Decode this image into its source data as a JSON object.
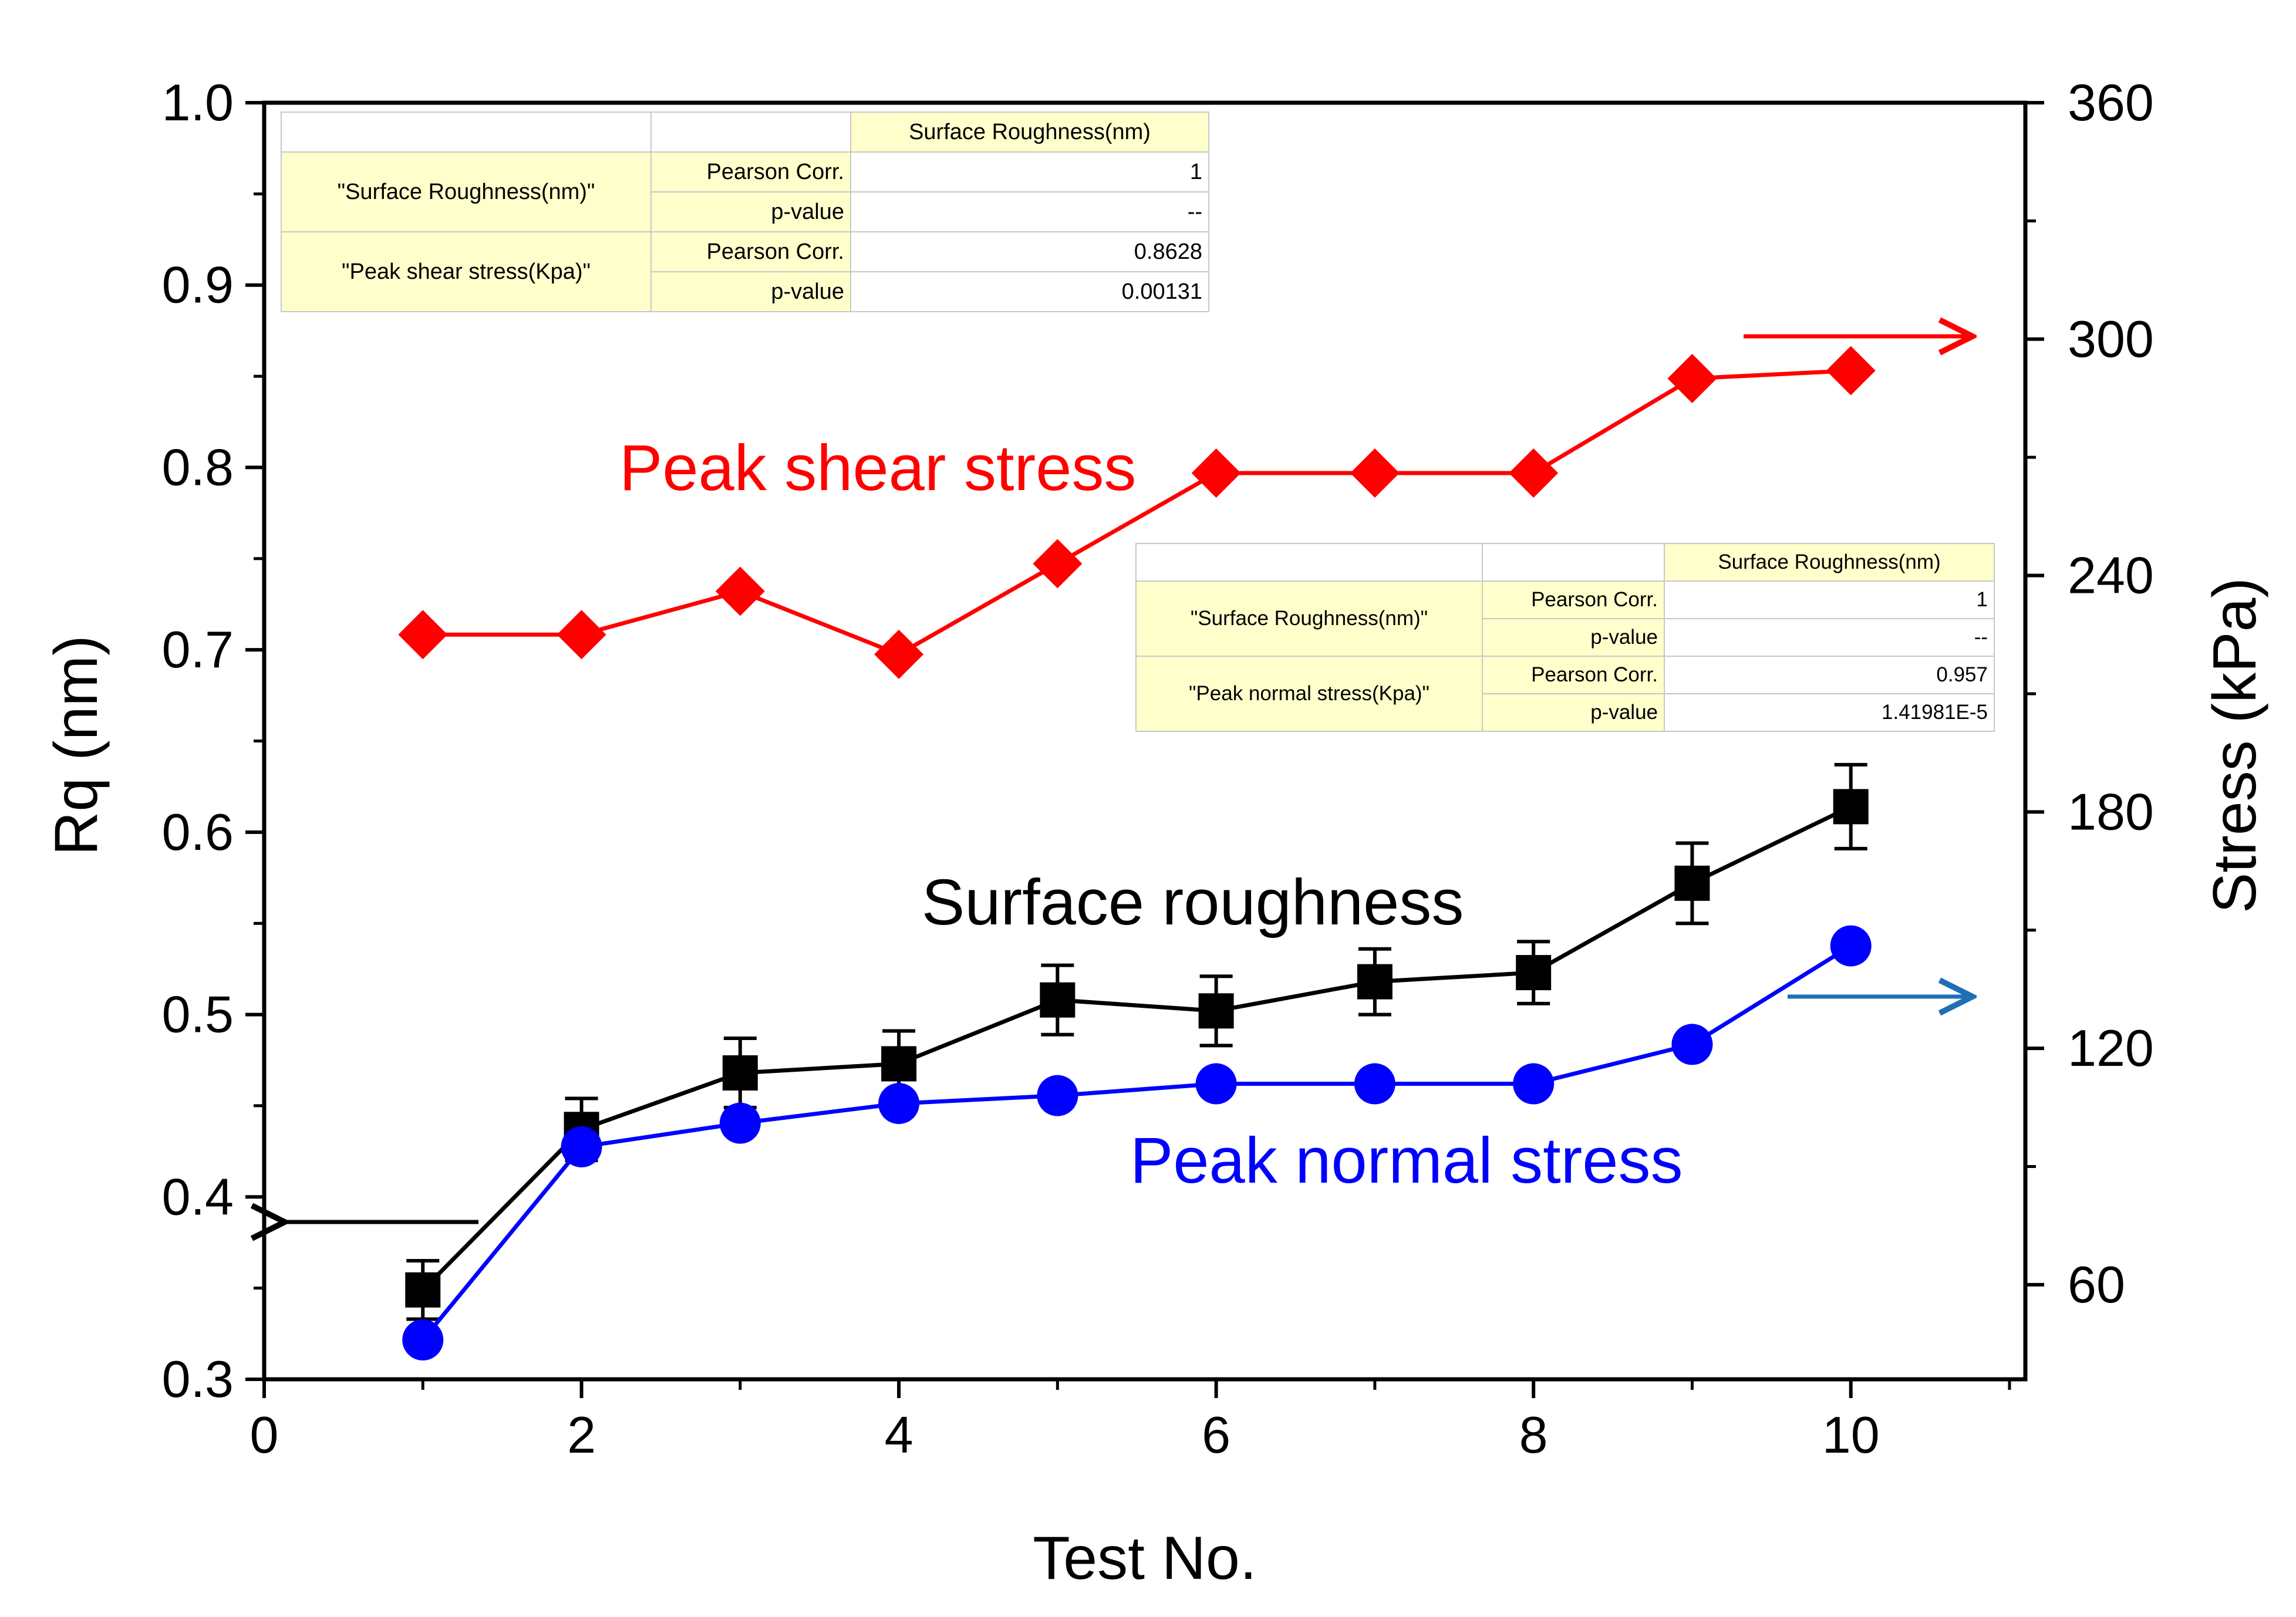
{
  "chart_data": {
    "type": "line",
    "x": [
      1,
      2,
      3,
      4,
      5,
      6,
      7,
      8,
      9,
      10
    ],
    "xlabel": "Test No.",
    "xlim": [
      0,
      11.1
    ],
    "xticks": [
      "0",
      "2",
      "4",
      "6",
      "8",
      "10"
    ],
    "ylabel_left": "Rq (nm)",
    "ylim_left": [
      0.3,
      1.0
    ],
    "yticks_left": [
      "0.3",
      "0.4",
      "0.5",
      "0.6",
      "0.7",
      "0.8",
      "0.9",
      "1.0"
    ],
    "ylabel_right": "Stress (kPa)",
    "ylim_right": [
      36,
      360
    ],
    "yticks_right": [
      "60",
      "120",
      "180",
      "240",
      "300",
      "360"
    ],
    "grid": false,
    "series": [
      {
        "name": "Surface roughness",
        "axis": "left",
        "color": "#000000",
        "marker": "square",
        "values": [
          0.349,
          0.437,
          0.468,
          0.473,
          0.508,
          0.502,
          0.518,
          0.523,
          0.572,
          0.614
        ],
        "errors": [
          0.016,
          0.017,
          0.019,
          0.018,
          0.019,
          0.019,
          0.018,
          0.017,
          0.022,
          0.023
        ]
      },
      {
        "name": "Peak shear stress",
        "axis": "right",
        "color": "#ff0000",
        "marker": "diamond",
        "values": [
          225,
          225,
          236,
          220,
          243,
          266,
          266,
          266,
          290,
          292
        ]
      },
      {
        "name": "Peak normal stress",
        "axis": "right",
        "color": "#0000ff",
        "marker": "circle",
        "values": [
          46,
          95,
          101,
          106,
          108,
          111,
          111,
          111,
          121,
          146
        ]
      }
    ],
    "annotations": [
      "Peak shear stress",
      "Surface roughness",
      "Peak normal stress"
    ]
  },
  "correlation_tables": [
    {
      "header": "Surface Roughness(nm)",
      "rows": [
        {
          "variable": "\"Surface Roughness(nm)\"",
          "stat1": "Pearson Corr.",
          "val1": "1",
          "stat2": "p-value",
          "val2": "--"
        },
        {
          "variable": "\"Peak shear stress(Kpa)\"",
          "stat1": "Pearson Corr.",
          "val1": "0.8628",
          "stat2": "p-value",
          "val2": "0.00131"
        }
      ]
    },
    {
      "header": "Surface Roughness(nm)",
      "rows": [
        {
          "variable": "\"Surface Roughness(nm)\"",
          "stat1": "Pearson Corr.",
          "val1": "1",
          "stat2": "p-value",
          "val2": "--"
        },
        {
          "variable": "\"Peak normal stress(Kpa)\"",
          "stat1": "Pearson Corr.",
          "val1": "0.957",
          "stat2": "p-value",
          "val2": "1.41981E-5"
        }
      ]
    }
  ]
}
